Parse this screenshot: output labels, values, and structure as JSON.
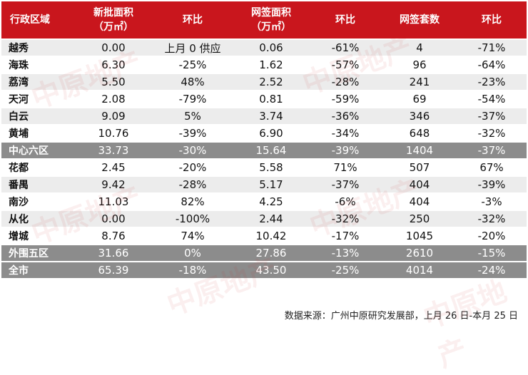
{
  "table": {
    "headers": [
      [
        "行政区域"
      ],
      [
        "新批面积",
        "（万㎡）"
      ],
      [
        "环比"
      ],
      [
        "网签面积",
        "（万㎡）"
      ],
      [
        "环比"
      ],
      [
        "网签套数"
      ],
      [
        "环比"
      ]
    ],
    "rows": [
      {
        "style": "light",
        "cells": [
          "越秀",
          "0.00",
          "上月 0 供应",
          "0.06",
          "-61%",
          "4",
          "-71%"
        ]
      },
      {
        "style": "white",
        "cells": [
          "海珠",
          "6.30",
          "-25%",
          "1.62",
          "-57%",
          "96",
          "-64%"
        ]
      },
      {
        "style": "light",
        "cells": [
          "荔湾",
          "5.50",
          "48%",
          "2.52",
          "-28%",
          "241",
          "-23%"
        ]
      },
      {
        "style": "white",
        "cells": [
          "天河",
          "2.08",
          "-79%",
          "0.81",
          "-59%",
          "69",
          "-54%"
        ]
      },
      {
        "style": "light",
        "cells": [
          "白云",
          "9.09",
          "5%",
          "3.74",
          "-36%",
          "346",
          "-37%"
        ]
      },
      {
        "style": "white",
        "cells": [
          "黄埔",
          "10.76",
          "-39%",
          "6.90",
          "-34%",
          "648",
          "-32%"
        ]
      },
      {
        "style": "dark",
        "cells": [
          "中心六区",
          "33.73",
          "-30%",
          "15.64",
          "-39%",
          "1404",
          "-37%"
        ]
      },
      {
        "style": "white",
        "cells": [
          "花都",
          "2.45",
          "-20%",
          "5.58",
          "71%",
          "507",
          "67%"
        ]
      },
      {
        "style": "light",
        "cells": [
          "番禺",
          "9.42",
          "-28%",
          "5.17",
          "-37%",
          "404",
          "-39%"
        ]
      },
      {
        "style": "white",
        "cells": [
          "南沙",
          "11.03",
          "82%",
          "4.25",
          "-6%",
          "404",
          "-3%"
        ]
      },
      {
        "style": "light",
        "cells": [
          "从化",
          "0.00",
          "-100%",
          "2.44",
          "-32%",
          "250",
          "-32%"
        ]
      },
      {
        "style": "white",
        "cells": [
          "增城",
          "8.76",
          "74%",
          "10.42",
          "-17%",
          "1045",
          "-20%"
        ]
      },
      {
        "style": "dark",
        "cells": [
          "外围五区",
          "31.66",
          "0%",
          "27.86",
          "-13%",
          "2610",
          "-15%"
        ]
      },
      {
        "style": "dark",
        "cells": [
          "全市",
          "65.39",
          "-18%",
          "43.50",
          "-25%",
          "4014",
          "-24%"
        ]
      }
    ]
  },
  "source_note": "数据来源：广州中原研究发展部，上月 26 日-本月 25 日",
  "watermark": "中原地产",
  "colors": {
    "header_bg": "#c9161d",
    "row_light": "#ececec",
    "row_dark": "#8c8c8c",
    "header_text": "#ffffff"
  }
}
